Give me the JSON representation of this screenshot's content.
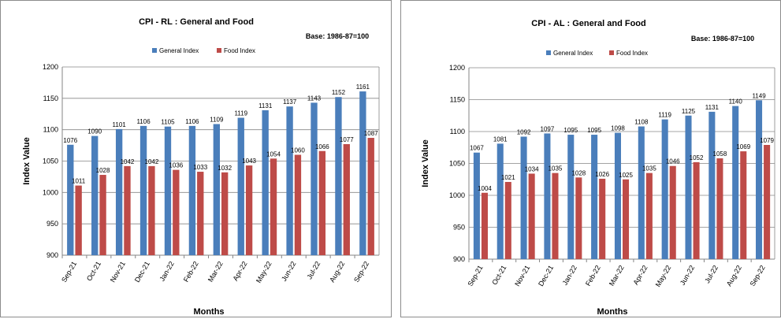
{
  "chart_data": [
    {
      "type": "bar",
      "title": "CPI - RL : General and Food",
      "base_note": "Base: 1986-87=100",
      "xlabel": "Months",
      "ylabel": "Index Value",
      "ylim": [
        900,
        1200
      ],
      "yticks": [
        "900",
        "950",
        "1000",
        "1050",
        "1100",
        "1150",
        "1200"
      ],
      "grid": true,
      "legend_position": "top",
      "categories": [
        "Sep-21",
        "Oct-21",
        "Nov-21",
        "Dec-21",
        "Jan-22",
        "Feb-22",
        "Mar-22",
        "Apr-22",
        "May-22",
        "Jun-22",
        "Jul-22",
        "Aug-22",
        "Sep-22"
      ],
      "series": [
        {
          "name": "General Index",
          "color": "#4a7ebb",
          "values": [
            1076,
            1090,
            1101,
            1106,
            1105,
            1106,
            1109,
            1119,
            1131,
            1137,
            1143,
            1152,
            1161
          ]
        },
        {
          "name": "Food Index",
          "color": "#be4b48",
          "values": [
            1011,
            1028,
            1042,
            1042,
            1036,
            1033,
            1032,
            1043,
            1054,
            1060,
            1066,
            1077,
            1087
          ]
        }
      ]
    },
    {
      "type": "bar",
      "title": "CPI - AL : General and Food",
      "base_note": "Base: 1986-87=100",
      "xlabel": "Months",
      "ylabel": "Index Value",
      "ylim": [
        900,
        1200
      ],
      "yticks": [
        "900",
        "950",
        "1000",
        "1050",
        "1100",
        "1150",
        "1200"
      ],
      "grid": true,
      "legend_position": "top",
      "categories": [
        "Sep-21",
        "Oct-21",
        "Nov-21",
        "Dec-21",
        "Jan-22",
        "Feb-22",
        "Mar-22",
        "Apr-22",
        "May-22",
        "Jun-22",
        "Jul-22",
        "Aug-22",
        "Sep-22"
      ],
      "series": [
        {
          "name": "General Index",
          "color": "#4a7ebb",
          "values": [
            1067,
            1081,
            1092,
            1097,
            1095,
            1095,
            1098,
            1108,
            1119,
            1125,
            1131,
            1140,
            1149
          ]
        },
        {
          "name": "Food Index",
          "color": "#be4b48",
          "values": [
            1004,
            1021,
            1034,
            1035,
            1028,
            1026,
            1025,
            1035,
            1046,
            1052,
            1058,
            1069,
            1079
          ]
        }
      ]
    }
  ]
}
